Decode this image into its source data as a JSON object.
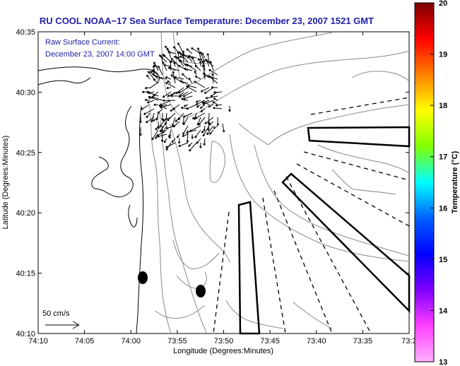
{
  "header": {
    "title": "RU COOL  NOAA−17  Sea Surface Temperature:  December 23, 2007 1521 GMT"
  },
  "annotation": {
    "line1": "Raw Surface Current:",
    "line2": "December 23, 2007 14:00 GMT"
  },
  "scale": {
    "label": "50 cm/s"
  },
  "axes": {
    "xlabel": "Longitude (Degrees:Minutes)",
    "ylabel": "Latitude (Degrees:Minutes)",
    "xticks": [
      "74:10",
      "74:05",
      "74:00",
      "73:55",
      "73:50",
      "73:45",
      "73:40",
      "73:35",
      "73:3"
    ],
    "yticks": [
      "40:35",
      "40:30",
      "40:25",
      "40:20",
      "40:15",
      "40:10"
    ]
  },
  "colorbar": {
    "label": "Temperature (°C)",
    "ticks": [
      "20",
      "19",
      "18",
      "17",
      "16",
      "15",
      "14",
      "13"
    ],
    "colors": [
      "#7a0000",
      "#ff0000",
      "#ff8000",
      "#ffff00",
      "#80ff00",
      "#00ffff",
      "#0060ff",
      "#0000ff",
      "#8000ff",
      "#ff40ff",
      "#ffb0ff"
    ]
  },
  "colors": {
    "title": "#2222aa",
    "annotation": "#2222aa",
    "coast": "#000000",
    "bathymetry": "#8a8a8a"
  }
}
